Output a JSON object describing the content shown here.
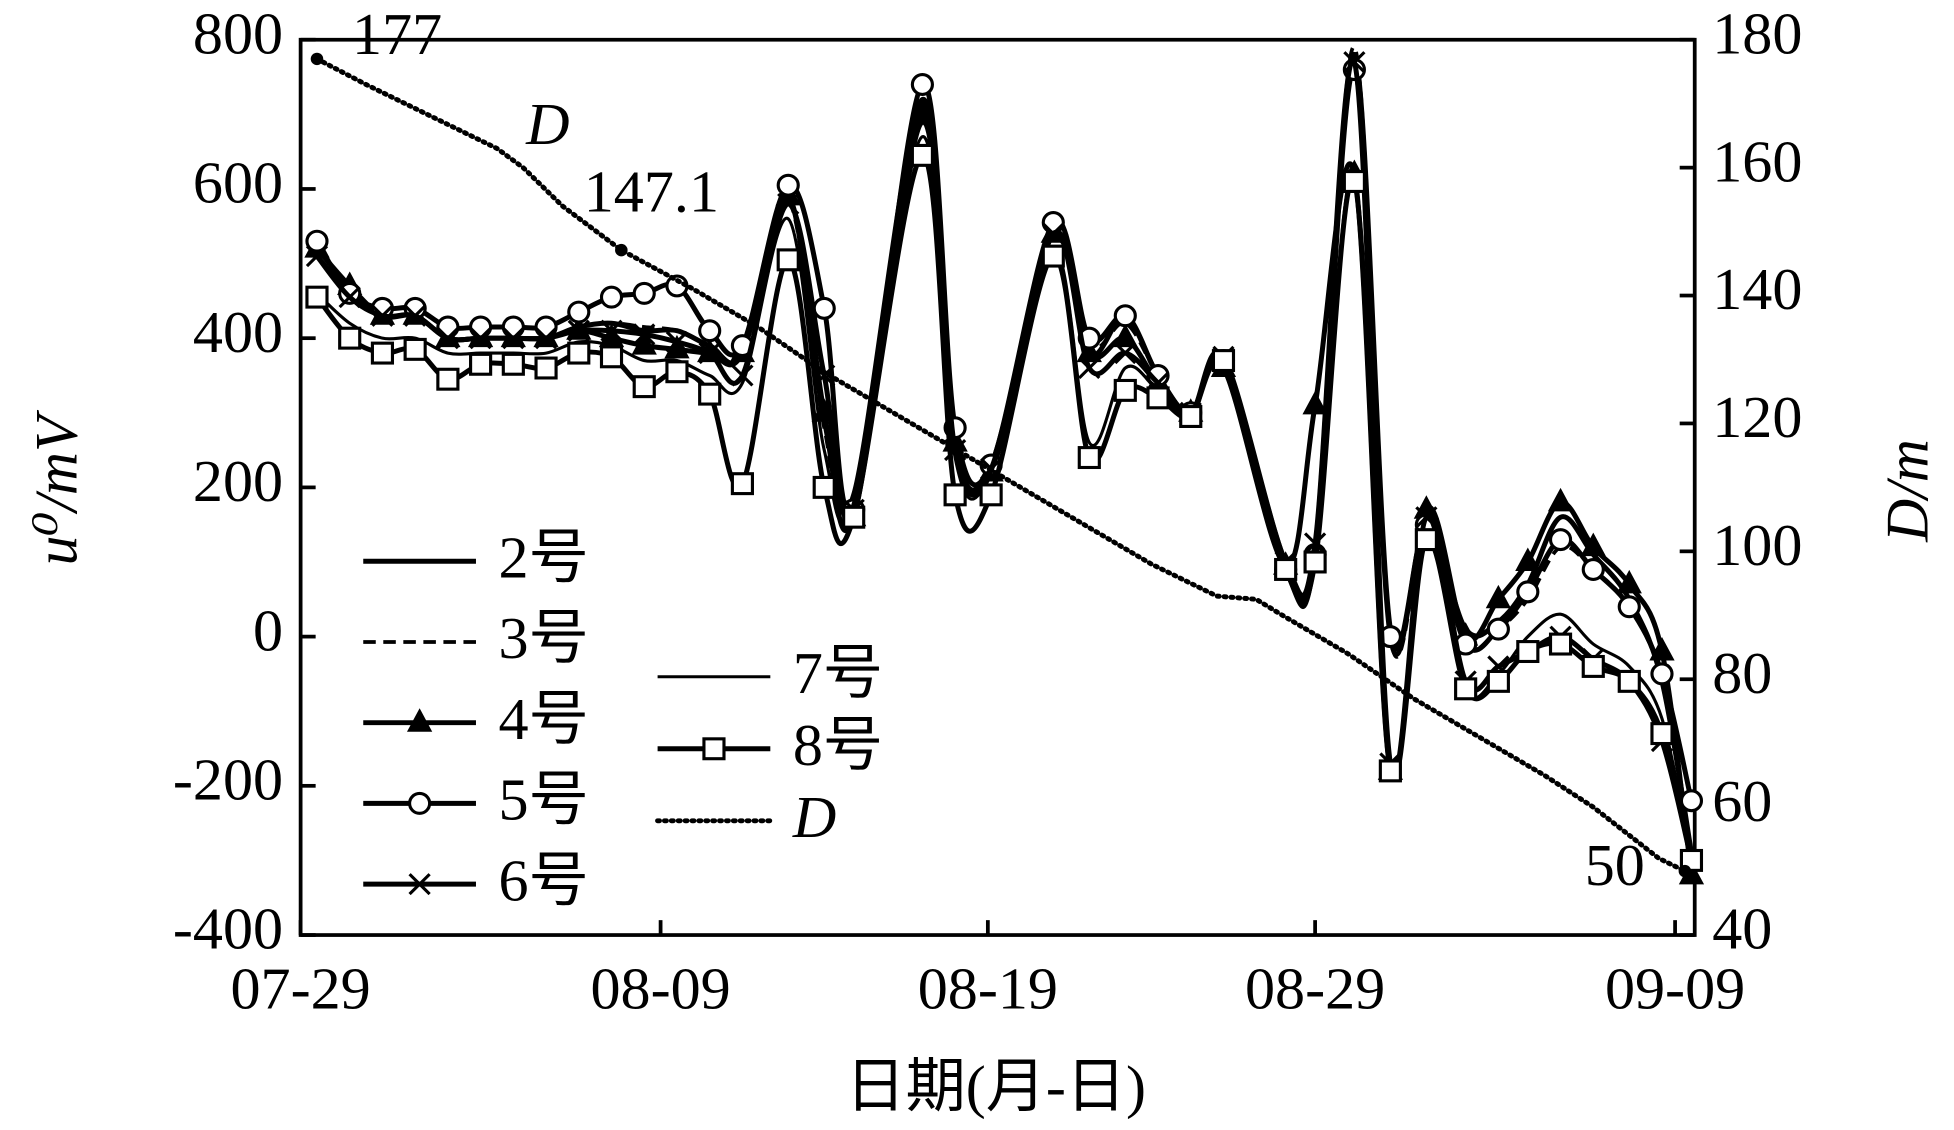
{
  "chart_data": {
    "type": "line",
    "xlabel": "日期(月-日)",
    "ylabel": "u⁰/mV",
    "y2label": "D/m",
    "xlim": [
      0,
      42.6
    ],
    "xticks": [
      {
        "value": 0,
        "label": "07-29"
      },
      {
        "value": 11,
        "label": "08-09"
      },
      {
        "value": 21,
        "label": "08-19"
      },
      {
        "value": 31,
        "label": "08-29"
      },
      {
        "value": 42,
        "label": "09-09"
      }
    ],
    "ylim": [
      -400,
      800
    ],
    "yticks": [
      -400,
      -200,
      0,
      200,
      400,
      600,
      800
    ],
    "y2lim": [
      40,
      180
    ],
    "y2ticks": [
      40,
      60,
      80,
      100,
      120,
      140,
      160,
      180
    ],
    "annotation": "D",
    "x": [
      0.5,
      1.5,
      2.5,
      3.5,
      4.5,
      5.5,
      6.5,
      7.5,
      8.5,
      9.5,
      10.5,
      11.5,
      12.5,
      13.5,
      14.9,
      16,
      16.9,
      19,
      20,
      21.1,
      23,
      24.1,
      25.2,
      26.2,
      27.2,
      28.2,
      30.1,
      31,
      32.2,
      33.3,
      34.4,
      35.6,
      36.6,
      37.5,
      38.5,
      39.5,
      40.6,
      41.6,
      42.5
    ],
    "series": [
      {
        "name": "2号",
        "color": "#000",
        "marker": "none",
        "style": "solid",
        "values": [
          510,
          460,
          430,
          430,
          400,
          400,
          400,
          400,
          415,
          420,
          410,
          410,
          390,
          380,
          590,
          290,
          190,
          720,
          260,
          230,
          540,
          380,
          430,
          350,
          300,
          370,
          100,
          120,
          780,
          10,
          150,
          10,
          20,
          70,
          160,
          110,
          50,
          -60,
          -290
        ]
      },
      {
        "name": "3号",
        "color": "#000",
        "marker": "none",
        "style": "dashed",
        "values": [
          510,
          455,
          430,
          430,
          400,
          400,
          400,
          400,
          415,
          420,
          415,
          410,
          390,
          380,
          585,
          280,
          170,
          710,
          250,
          230,
          540,
          390,
          420,
          350,
          300,
          370,
          90,
          110,
          790,
          0,
          140,
          -10,
          10,
          50,
          120,
          90,
          40,
          -60,
          -290
        ]
      },
      {
        "name": "4号",
        "color": "#000",
        "marker": "triangle",
        "style": "solid",
        "values": [
          520,
          470,
          430,
          430,
          400,
          400,
          400,
          400,
          410,
          400,
          390,
          385,
          380,
          380,
          590,
          300,
          160,
          700,
          260,
          220,
          540,
          380,
          400,
          340,
          300,
          360,
          95,
          310,
          620,
          -180,
          170,
          0,
          50,
          100,
          180,
          120,
          70,
          -20,
          -320
        ]
      },
      {
        "name": "5号",
        "color": "#000",
        "marker": "circle",
        "style": "solid",
        "values": [
          530,
          460,
          440,
          440,
          415,
          415,
          415,
          415,
          435,
          455,
          460,
          470,
          410,
          390,
          605,
          440,
          170,
          740,
          280,
          230,
          555,
          400,
          430,
          350,
          300,
          370,
          90,
          110,
          760,
          0,
          150,
          -10,
          10,
          60,
          130,
          90,
          40,
          -50,
          -220
        ]
      },
      {
        "name": "6号",
        "color": "#000",
        "marker": "cross",
        "style": "solid",
        "values": [
          510,
          455,
          430,
          430,
          400,
          400,
          400,
          400,
          410,
          410,
          405,
          395,
          380,
          350,
          580,
          350,
          170,
          690,
          250,
          225,
          540,
          360,
          380,
          340,
          300,
          375,
          100,
          125,
          770,
          -170,
          160,
          -60,
          -40,
          -20,
          0,
          -30,
          -60,
          -140,
          -300
        ]
      },
      {
        "name": "7号",
        "color": "#000",
        "marker": "none",
        "style": "thin",
        "values": [
          460,
          420,
          400,
          400,
          380,
          380,
          380,
          380,
          395,
          390,
          370,
          370,
          350,
          340,
          560,
          250,
          180,
          670,
          240,
          220,
          520,
          260,
          360,
          330,
          300,
          370,
          90,
          110,
          620,
          -170,
          140,
          -70,
          -50,
          0,
          30,
          -10,
          -40,
          -110,
          -300
        ]
      },
      {
        "name": "8号",
        "color": "#000",
        "marker": "square",
        "style": "solid",
        "values": [
          455,
          400,
          380,
          385,
          345,
          365,
          365,
          360,
          380,
          375,
          335,
          355,
          325,
          205,
          505,
          200,
          160,
          645,
          190,
          190,
          510,
          240,
          330,
          320,
          295,
          370,
          90,
          100,
          610,
          -180,
          130,
          -70,
          -60,
          -20,
          -10,
          -40,
          -60,
          -130,
          -300
        ]
      },
      {
        "name": "D",
        "color": "#000",
        "marker": "none",
        "style": "dotted",
        "axis": "y2",
        "x": [
          0.5,
          2,
          4,
          6,
          6.8,
          8,
          9.8,
          12,
          14,
          16,
          18,
          20,
          22,
          24,
          26,
          28,
          29.2,
          30,
          32,
          34,
          36,
          38,
          39.5,
          40.5,
          41.5,
          42.3
        ],
        "values": [
          177,
          173,
          168,
          163,
          160,
          154,
          147.1,
          141,
          135,
          128,
          122,
          116,
          110,
          104,
          98,
          93,
          92.5,
          90,
          84,
          77,
          71,
          65,
          60,
          56,
          52,
          50
        ]
      }
    ]
  }
}
